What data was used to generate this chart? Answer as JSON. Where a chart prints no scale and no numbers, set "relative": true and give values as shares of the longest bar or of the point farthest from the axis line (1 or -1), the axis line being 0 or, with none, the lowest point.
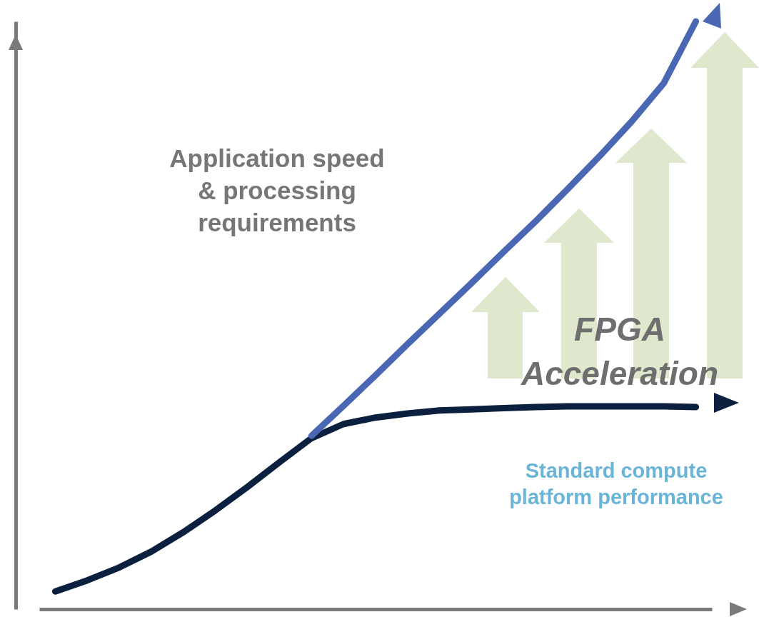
{
  "chart_data": {
    "type": "line",
    "relative": true,
    "categories": [
      null,
      null,
      null,
      null,
      null,
      null,
      null,
      null,
      null,
      null,
      null,
      null,
      null,
      null,
      null,
      null,
      null,
      null,
      null,
      null,
      null
    ],
    "series": [
      {
        "name": "Standard compute platform performance",
        "color": "#0b1f3f",
        "values": [
          0.03,
          0.049,
          0.071,
          0.098,
          0.131,
          0.168,
          0.208,
          0.25,
          0.291,
          0.315,
          0.326,
          0.333,
          0.338,
          0.34,
          0.342,
          0.344,
          0.345,
          0.345,
          0.345,
          0.345,
          0.344
        ]
      },
      {
        "color": "#4a67b4",
        "values": [
          null,
          null,
          null,
          null,
          null,
          null,
          null,
          null,
          0.295,
          0.346,
          0.398,
          0.451,
          0.503,
          0.555,
          0.608,
          0.66,
          0.715,
          0.771,
          0.83,
          0.895,
          1
        ]
      }
    ],
    "annotations": [
      "Application speed & processing requirements",
      "FPGA Acceleration"
    ],
    "legend": false,
    "grid": false,
    "marker": "none",
    "line_style": "solid"
  }
}
